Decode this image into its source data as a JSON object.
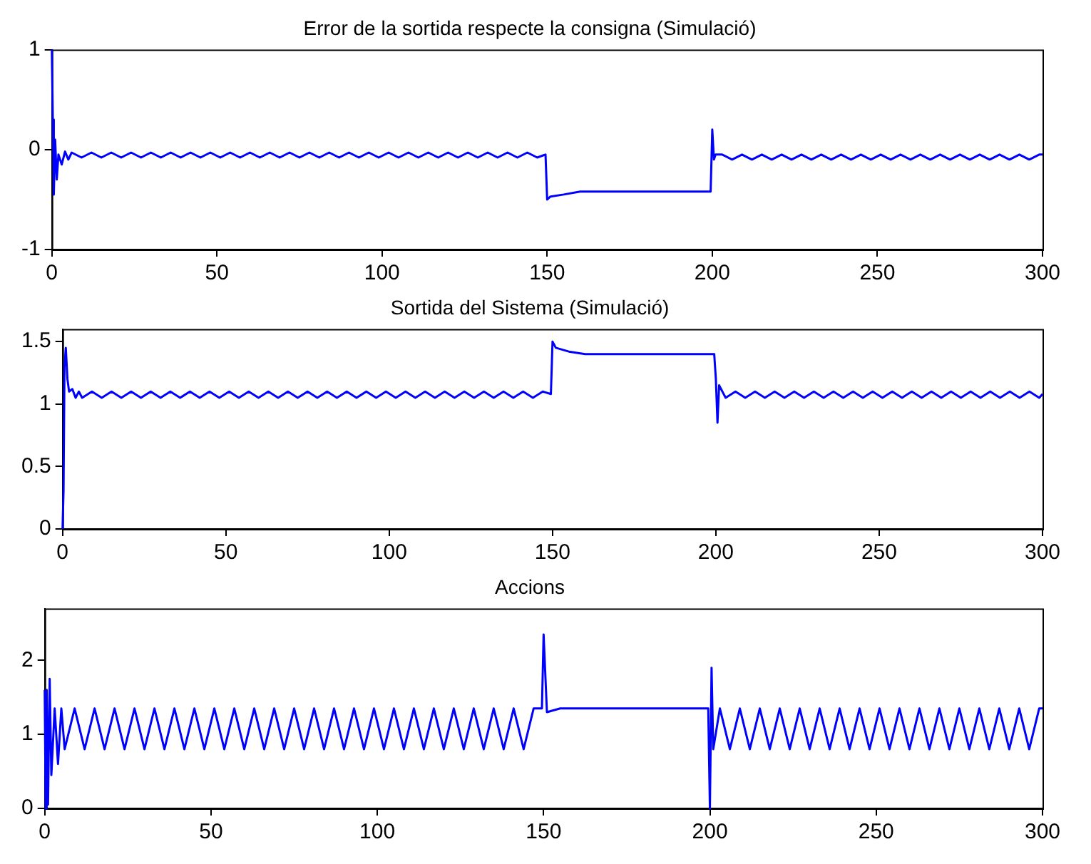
{
  "chart_data": [
    {
      "type": "line",
      "title": "Error de la sortida respecte la consigna (Simulació)",
      "color": "#0000ff",
      "grid": false,
      "xlim": [
        0,
        300
      ],
      "xticks": [
        0,
        50,
        100,
        150,
        200,
        250,
        300
      ],
      "ylim": [
        -1,
        1
      ],
      "yticks": [
        -1,
        0,
        1
      ],
      "x": [
        0,
        0.3,
        0.6,
        1,
        1.5,
        2,
        3,
        4,
        5,
        6,
        9,
        12,
        15,
        18,
        21,
        24,
        27,
        30,
        33,
        36,
        39,
        42,
        45,
        48,
        51,
        54,
        57,
        60,
        63,
        66,
        69,
        72,
        75,
        78,
        81,
        84,
        87,
        90,
        93,
        96,
        99,
        102,
        105,
        108,
        111,
        114,
        117,
        120,
        123,
        126,
        129,
        132,
        135,
        138,
        141,
        144,
        147,
        149.5,
        150,
        151,
        155,
        160,
        199.5,
        200,
        200.5,
        201,
        203,
        206,
        209,
        212,
        215,
        218,
        221,
        224,
        227,
        230,
        233,
        236,
        239,
        242,
        245,
        248,
        251,
        254,
        257,
        260,
        263,
        266,
        269,
        272,
        275,
        278,
        281,
        284,
        287,
        290,
        293,
        296,
        299,
        300
      ],
      "values": [
        1,
        0.3,
        -0.45,
        0.1,
        -0.3,
        -0.05,
        -0.15,
        -0.02,
        -0.1,
        -0.03,
        -0.08,
        -0.03,
        -0.08,
        -0.03,
        -0.08,
        -0.03,
        -0.08,
        -0.03,
        -0.08,
        -0.03,
        -0.08,
        -0.03,
        -0.08,
        -0.03,
        -0.08,
        -0.03,
        -0.08,
        -0.03,
        -0.08,
        -0.03,
        -0.08,
        -0.03,
        -0.08,
        -0.03,
        -0.08,
        -0.03,
        -0.08,
        -0.03,
        -0.08,
        -0.03,
        -0.08,
        -0.03,
        -0.08,
        -0.03,
        -0.08,
        -0.03,
        -0.08,
        -0.03,
        -0.08,
        -0.03,
        -0.08,
        -0.03,
        -0.08,
        -0.03,
        -0.08,
        -0.03,
        -0.08,
        -0.05,
        -0.5,
        -0.47,
        -0.45,
        -0.42,
        -0.42,
        0.2,
        -0.1,
        -0.05,
        -0.05,
        -0.1,
        -0.05,
        -0.1,
        -0.05,
        -0.1,
        -0.05,
        -0.1,
        -0.05,
        -0.1,
        -0.05,
        -0.1,
        -0.05,
        -0.1,
        -0.05,
        -0.1,
        -0.05,
        -0.1,
        -0.05,
        -0.1,
        -0.05,
        -0.1,
        -0.05,
        -0.1,
        -0.05,
        -0.1,
        -0.05,
        -0.1,
        -0.05,
        -0.1,
        -0.05,
        -0.1,
        -0.05,
        -0.05
      ]
    },
    {
      "type": "line",
      "title": "Sortida del Sistema (Simulació)",
      "color": "#0000ff",
      "grid": false,
      "xlim": [
        0,
        300
      ],
      "xticks": [
        0,
        50,
        100,
        150,
        200,
        250,
        300
      ],
      "ylim": [
        0,
        1.6
      ],
      "yticks": [
        0,
        0.5,
        1,
        1.5
      ],
      "x": [
        0,
        0.3,
        0.6,
        1,
        1.5,
        2,
        3,
        4,
        5,
        6,
        9,
        12,
        15,
        18,
        21,
        24,
        27,
        30,
        33,
        36,
        39,
        42,
        45,
        48,
        51,
        54,
        57,
        60,
        63,
        66,
        69,
        72,
        75,
        78,
        81,
        84,
        87,
        90,
        93,
        96,
        99,
        102,
        105,
        108,
        111,
        114,
        117,
        120,
        123,
        126,
        129,
        132,
        135,
        138,
        141,
        144,
        147,
        149.5,
        150,
        151,
        155,
        160,
        199.5,
        200,
        200.5,
        201,
        203,
        206,
        209,
        212,
        215,
        218,
        221,
        224,
        227,
        230,
        233,
        236,
        239,
        242,
        245,
        248,
        251,
        254,
        257,
        260,
        263,
        266,
        269,
        272,
        275,
        278,
        281,
        284,
        287,
        290,
        293,
        296,
        299,
        300
      ],
      "values": [
        0,
        0.3,
        1.3,
        1.45,
        1.2,
        1.1,
        1.12,
        1.05,
        1.1,
        1.05,
        1.1,
        1.05,
        1.1,
        1.05,
        1.1,
        1.05,
        1.1,
        1.05,
        1.1,
        1.05,
        1.1,
        1.05,
        1.1,
        1.05,
        1.1,
        1.05,
        1.1,
        1.05,
        1.1,
        1.05,
        1.1,
        1.05,
        1.1,
        1.05,
        1.1,
        1.05,
        1.1,
        1.05,
        1.1,
        1.05,
        1.1,
        1.05,
        1.1,
        1.05,
        1.1,
        1.05,
        1.1,
        1.05,
        1.1,
        1.05,
        1.1,
        1.05,
        1.1,
        1.05,
        1.1,
        1.05,
        1.1,
        1.08,
        1.5,
        1.45,
        1.42,
        1.4,
        1.4,
        1.2,
        0.85,
        1.15,
        1.05,
        1.1,
        1.05,
        1.1,
        1.05,
        1.1,
        1.05,
        1.1,
        1.05,
        1.1,
        1.05,
        1.1,
        1.05,
        1.1,
        1.05,
        1.1,
        1.05,
        1.1,
        1.05,
        1.1,
        1.05,
        1.1,
        1.05,
        1.1,
        1.05,
        1.1,
        1.05,
        1.1,
        1.05,
        1.1,
        1.05,
        1.1,
        1.05,
        1.08
      ]
    },
    {
      "type": "line",
      "title": "Accions",
      "color": "#0000ff",
      "grid": false,
      "xlim": [
        0,
        300
      ],
      "xticks": [
        0,
        50,
        100,
        150,
        200,
        250,
        300
      ],
      "ylim": [
        0,
        2.7
      ],
      "yticks": [
        0,
        1,
        2
      ],
      "x": [
        0,
        0.3,
        0.6,
        1,
        1.5,
        2,
        3,
        4,
        5,
        6,
        9,
        12,
        15,
        18,
        21,
        24,
        27,
        30,
        33,
        36,
        39,
        42,
        45,
        48,
        51,
        54,
        57,
        60,
        63,
        66,
        69,
        72,
        75,
        78,
        81,
        84,
        87,
        90,
        93,
        96,
        99,
        102,
        105,
        108,
        111,
        114,
        117,
        120,
        123,
        126,
        129,
        132,
        135,
        138,
        141,
        144,
        147,
        149.5,
        150,
        151,
        155,
        160,
        199.5,
        200,
        200.5,
        201,
        203,
        206,
        209,
        212,
        215,
        218,
        221,
        224,
        227,
        230,
        233,
        236,
        239,
        242,
        245,
        248,
        251,
        254,
        257,
        260,
        263,
        266,
        269,
        272,
        275,
        278,
        281,
        284,
        287,
        290,
        293,
        296,
        299,
        300
      ],
      "values": [
        1.6,
        0,
        1.6,
        0.05,
        1.75,
        0.45,
        1.35,
        0.6,
        1.35,
        0.8,
        1.35,
        0.8,
        1.35,
        0.8,
        1.35,
        0.8,
        1.35,
        0.8,
        1.35,
        0.8,
        1.35,
        0.8,
        1.35,
        0.8,
        1.35,
        0.8,
        1.35,
        0.8,
        1.35,
        0.8,
        1.35,
        0.8,
        1.35,
        0.8,
        1.35,
        0.8,
        1.35,
        0.8,
        1.35,
        0.8,
        1.35,
        0.8,
        1.35,
        0.8,
        1.35,
        0.8,
        1.35,
        0.8,
        1.35,
        0.8,
        1.35,
        0.8,
        1.35,
        0.8,
        1.35,
        0.8,
        1.35,
        1.35,
        2.35,
        1.3,
        1.35,
        1.35,
        1.35,
        0,
        1.9,
        0.8,
        1.35,
        0.8,
        1.35,
        0.8,
        1.35,
        0.8,
        1.35,
        0.8,
        1.35,
        0.8,
        1.35,
        0.8,
        1.35,
        0.8,
        1.35,
        0.8,
        1.35,
        0.8,
        1.35,
        0.8,
        1.35,
        0.8,
        1.35,
        0.8,
        1.35,
        0.8,
        1.35,
        0.8,
        1.35,
        0.8,
        1.35,
        0.8,
        1.35,
        1.35
      ]
    }
  ]
}
